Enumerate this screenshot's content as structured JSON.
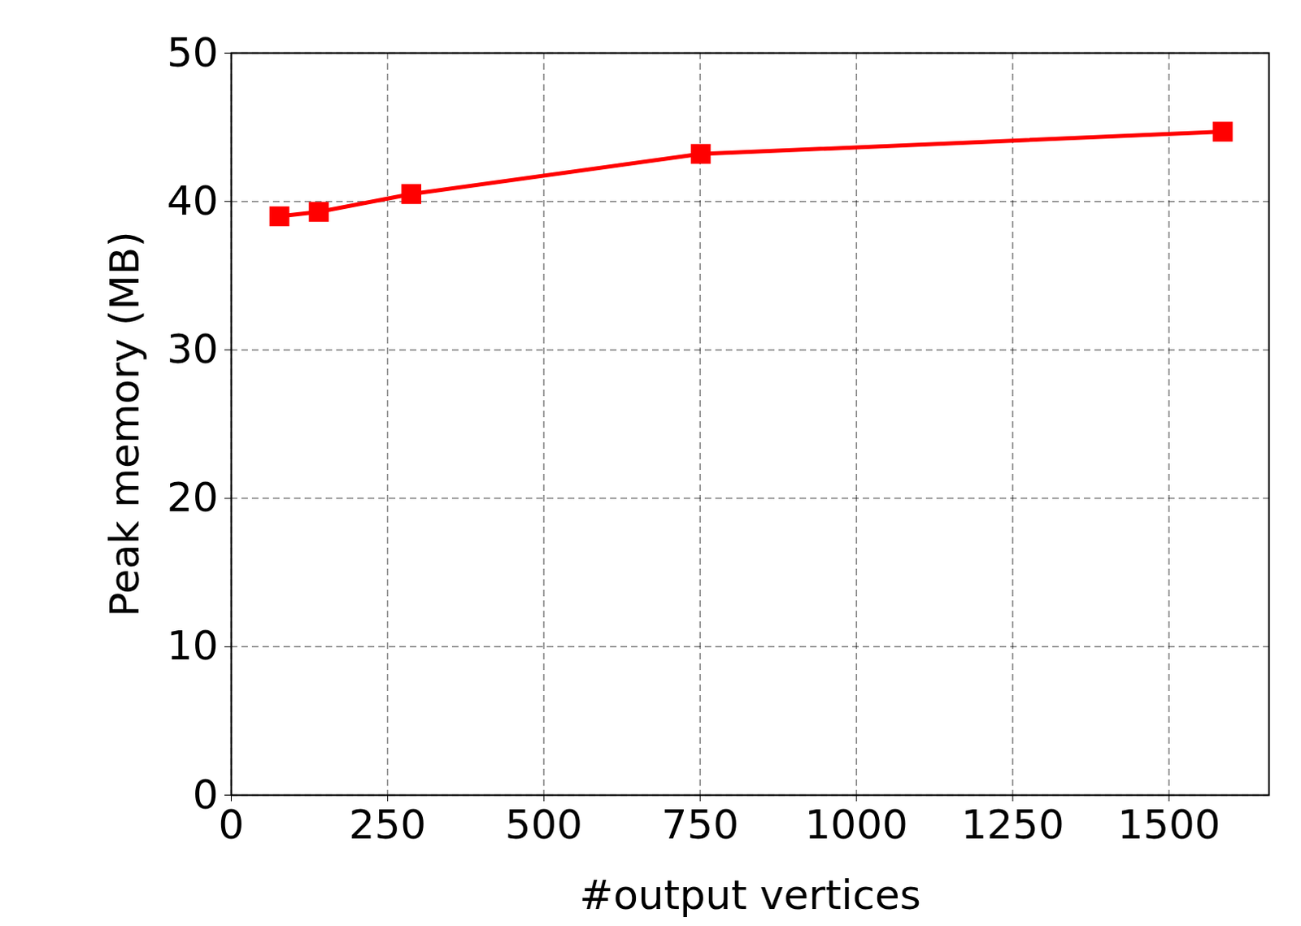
{
  "chart_data": {
    "type": "line",
    "x_label": "#output vertices",
    "y_label": "Peak memory (MB)",
    "x": [
      77,
      140,
      288,
      751,
      1586
    ],
    "series": [
      {
        "color": "#ff0000",
        "marker": "square",
        "line_style": "solid",
        "values": [
          39.0,
          39.3,
          40.5,
          43.2,
          44.7
        ]
      }
    ],
    "xlim": [
      0,
      1660
    ],
    "ylim": [
      0,
      50
    ],
    "xticks": [
      0,
      250,
      500,
      750,
      1000,
      1250,
      1500
    ],
    "yticks": [
      0,
      10,
      20,
      30,
      40,
      50
    ],
    "grid": true
  }
}
